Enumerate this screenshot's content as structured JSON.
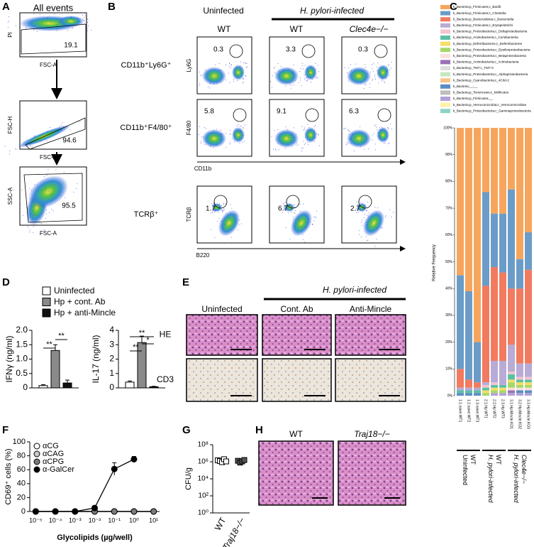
{
  "panel_letters": [
    "A",
    "B",
    "C",
    "D",
    "E",
    "F",
    "G",
    "H"
  ],
  "panel_a": {
    "title": "All events",
    "plots": [
      {
        "y_label": "PI",
        "x_label": "FSC-A",
        "gate_value": 19.1
      },
      {
        "y_label": "FSC-H",
        "x_label": "FSC-A",
        "gate_value": 94.6
      },
      {
        "y_label": "SSC-A",
        "x_label": "FSC-A",
        "gate_value": 95.5
      }
    ]
  },
  "panel_b": {
    "group_uninfected": "Uninfected",
    "group_infected": "H. pylori-infected",
    "columns": [
      "WT",
      "WT",
      "Clec4e−/−"
    ],
    "rows": [
      {
        "label": "CD11b⁺Ly6G⁺",
        "y_label": "Ly6G",
        "gate_values": [
          0.3,
          3.3,
          0.3
        ]
      },
      {
        "label": "CD11b⁺F4/80⁺",
        "y_label": "F4/80",
        "x_label": "CD11b",
        "gate_values": [
          5.8,
          9.1,
          6.3
        ]
      },
      {
        "label": "TCRβ⁺",
        "y_label": "TCRβ",
        "x_label": "B220",
        "gate_values": [
          1.7,
          6.7,
          2.7
        ]
      }
    ]
  },
  "panel_e": {
    "group_infected": "H. pylori-infected",
    "columns": [
      "Uninfected",
      "Cont. Ab",
      "Anti-Mincle"
    ],
    "rows": [
      "HE",
      "CD3"
    ]
  },
  "panel_h": {
    "columns": [
      "WT",
      "Traj18−/−"
    ]
  },
  "chart_data": [
    {
      "type": "stacked_bar",
      "ylabel": "Relative Frequency",
      "categories": [
        "1.1.naive.WT1",
        "1.2.naive.WT2",
        "1.3.naive.WT3",
        "2.1.Hp.WT1",
        "2.2.Hp.WT2",
        "2.3.Hp.WT3",
        "3.1.Hp.Mincle.KO1",
        "3.2.Hp.Mincle.KO2",
        "3.3.Hp.Mincle.KO3"
      ],
      "groups": [
        {
          "lines": [
            "Uninfected",
            "WT"
          ]
        },
        {
          "lines": [
            "H. pylori-infected",
            "WT"
          ]
        },
        {
          "lines": [
            "H. pylori-infected",
            "Clec4e−/−"
          ]
        }
      ],
      "ylim": [
        0,
        100
      ],
      "yticks": [
        {
          "value": 0,
          "label": "0%"
        },
        {
          "value": 10,
          "label": "10%"
        },
        {
          "value": 20,
          "label": "20%"
        },
        {
          "value": 30,
          "label": "30%"
        },
        {
          "value": 40,
          "label": "40%"
        },
        {
          "value": 50,
          "label": "50%"
        },
        {
          "value": 60,
          "label": "60%"
        },
        {
          "value": 70,
          "label": "70%"
        },
        {
          "value": 80,
          "label": "80%"
        },
        {
          "value": 90,
          "label": "90%"
        },
        {
          "value": 100,
          "label": "100%"
        }
      ],
      "series": [
        {
          "name": "k_Bacteria;p_Firmicutes;c_Bacilli",
          "color": "#f7a55c",
          "values": [
            55,
            61,
            80,
            24,
            32,
            32,
            23,
            49,
            39
          ]
        },
        {
          "name": "k_Bacteria;p_Firmicutes;c_Clostridia",
          "color": "#6b9cc8",
          "values": [
            35,
            33,
            15,
            35,
            20,
            22,
            37,
            11,
            14
          ]
        },
        {
          "name": "k_Bacteria;p_Bacteroidetes;c_Bacteroidia",
          "color": "#f27a5f",
          "values": [
            7,
            3,
            2,
            36,
            35,
            33,
            21,
            28,
            35
          ]
        },
        {
          "name": "k_Bacteria;p_Firmicutes;c_Erysipelotrichi",
          "color": "#b8abd6",
          "values": [
            1,
            1,
            1,
            1,
            8,
            9,
            10,
            5,
            5
          ]
        },
        {
          "name": "k_Bacteria;p_Proteobacteria;c_Deltaproteobacteria",
          "color": "#f4c3cf",
          "values": [
            0,
            0,
            0,
            1,
            1,
            0,
            1,
            1,
            1
          ]
        },
        {
          "name": "k_Bacteria;p_Actinobacteria;c_Coriobacteriia",
          "color": "#5bbfa6",
          "values": [
            1,
            1,
            1,
            1,
            1,
            1,
            2,
            1,
            1
          ]
        },
        {
          "name": "k_Bacteria;p_Deferribacteres;c_Deferribacteres",
          "color": "#f5de68",
          "values": [
            0,
            0,
            0,
            1,
            1,
            1,
            1,
            1,
            1
          ]
        },
        {
          "name": "k_Bacteria;p_Proteobacteria;c_Epsilonproteobacteria",
          "color": "#a6d86b",
          "values": [
            0,
            0,
            0,
            1,
            1,
            1,
            2,
            1,
            1
          ]
        },
        {
          "name": "k_Bacteria;p_Proteobacteria;c_Betaproteobacteria",
          "color": "#fbe0dc",
          "values": [
            0,
            0,
            0,
            0,
            0,
            0,
            1,
            1,
            1
          ]
        },
        {
          "name": "k_Bacteria;p_Actinobacteria;c_Actinobacteria",
          "color": "#9b70b4",
          "values": [
            0,
            0,
            0,
            0,
            0,
            0,
            1,
            0,
            0
          ]
        },
        {
          "name": "k_Bacteria;p_TM7;c_TM7-3",
          "color": "#dedede",
          "values": [
            0,
            0,
            0,
            0,
            0,
            0,
            0,
            0,
            0
          ]
        },
        {
          "name": "k_Bacteria;p_Proteobacteria;c_Alphaproteobacteria",
          "color": "#c6e8bf",
          "values": [
            0,
            0,
            0,
            0,
            0,
            0,
            0,
            0,
            0
          ]
        },
        {
          "name": "k_Bacteria;p_Cyanobacteria;c_4C0d-2",
          "color": "#f8c489",
          "values": [
            0,
            0,
            0,
            0,
            0,
            0,
            0,
            0,
            0
          ]
        },
        {
          "name": "k_Bacteria;__;__",
          "color": "#5a8dc3",
          "values": [
            1,
            1,
            1,
            0,
            0,
            0,
            0,
            1,
            1
          ]
        },
        {
          "name": "k_Bacteria;p_Tenericutes;c_Mollicutes",
          "color": "#bdbdbd",
          "values": [
            0,
            0,
            0,
            0,
            0,
            0,
            0,
            0,
            0
          ]
        },
        {
          "name": "k_Bacteria;p_Firmicutes;__",
          "color": "#b2a1d8",
          "values": [
            0,
            0,
            0,
            0,
            1,
            1,
            1,
            1,
            1
          ]
        },
        {
          "name": "k_Bacteria;p_Verrucomicrobia;c_Verrucomicrobiae",
          "color": "#fff1a6",
          "values": [
            0,
            0,
            0,
            0,
            0,
            0,
            0,
            0,
            0
          ]
        },
        {
          "name": "k_Bacteria;p_Proteobacteria;c_Gammaproteobacteria",
          "color": "#8ed2c6",
          "values": [
            0,
            0,
            0,
            0,
            0,
            0,
            0,
            0,
            0
          ]
        }
      ]
    },
    {
      "type": "bar",
      "legend": [
        "Uninfected",
        "Hp + cont. Ab",
        "Hp + anti-Mincle"
      ],
      "colors": [
        "#ffffff",
        "#8a8a8a",
        "#111111"
      ],
      "subplots": [
        {
          "ylabel": "IFNγ (ng/ml)",
          "values": [
            0.08,
            1.3,
            0.17
          ],
          "errors": [
            0.03,
            0.2,
            0.1
          ],
          "ylim": [
            0,
            2
          ],
          "yticks": [
            0,
            0.5,
            {
              "value": 1,
              "label": "1.0"
            },
            1.5,
            {
              "value": 2,
              "label": "2.0"
            }
          ],
          "annotations": [
            "**",
            "**"
          ]
        },
        {
          "ylabel": "IL-17 (ng/ml)",
          "values": [
            0.4,
            3.15,
            0.08
          ],
          "errors": [
            0.08,
            0.45,
            0.03
          ],
          "ylim": [
            0,
            4
          ],
          "yticks": [
            0,
            1,
            2,
            3,
            4
          ],
          "annotations": [
            "**",
            "*",
            "**"
          ]
        }
      ]
    },
    {
      "type": "line",
      "xlabel": "Glycolipids (µg/well)",
      "ylabel": "CD69⁺ cells (%)",
      "log_x": true,
      "x": [
        1e-05,
        0.0001,
        0.001,
        0.01,
        0.1,
        1,
        10
      ],
      "xlim": [
        5e-06,
        20
      ],
      "xticks": [
        {
          "value": 1e-05,
          "label": "10⁻⁵"
        },
        {
          "value": 0.0001,
          "label": "10⁻⁴"
        },
        {
          "value": 0.001,
          "label": "10⁻³"
        },
        {
          "value": 0.01,
          "label": "10⁻²"
        },
        {
          "value": 0.1,
          "label": "10⁻¹"
        },
        {
          "value": 1,
          "label": "10⁰"
        },
        {
          "value": 10,
          "label": "10¹"
        }
      ],
      "ylim": [
        0,
        100
      ],
      "yticks": [
        0,
        20,
        40,
        60,
        80,
        100
      ],
      "series": [
        {
          "name": "αCG",
          "color": "#ffffff",
          "values": [
            0,
            0,
            0,
            0,
            0,
            0,
            0
          ]
        },
        {
          "name": "αCAG",
          "color": "#c8c8c8",
          "values": [
            0,
            0,
            0,
            0,
            0,
            0,
            0
          ]
        },
        {
          "name": "αCPG",
          "color": "#7a7a7a",
          "values": [
            0,
            0,
            0,
            0,
            0,
            0,
            0
          ]
        },
        {
          "name": "α-GalCer",
          "color": "#000000",
          "values": [
            0,
            0,
            0,
            5,
            61,
            75,
            null
          ],
          "errors": [
            0,
            0,
            0,
            1,
            9,
            4,
            null
          ]
        }
      ]
    },
    {
      "type": "scatter",
      "ylabel": "CFU/g",
      "log_y": true,
      "categories": [
        "WT",
        "Traj18−/−"
      ],
      "colors": [
        "#ffffff",
        "#555555"
      ],
      "values": [
        [
          1500000,
          1200000,
          900000,
          2000000,
          1100000
        ],
        [
          1300000,
          800000,
          1100000,
          1600000
        ]
      ],
      "ylim": [
        1,
        100000000
      ],
      "yticks": [
        {
          "value": 1,
          "label": "10⁰"
        },
        {
          "value": 100,
          "label": "10²"
        },
        {
          "value": 10000,
          "label": "10⁴"
        },
        {
          "value": 1000000,
          "label": "10⁶"
        },
        {
          "value": 100000000,
          "label": "10⁸"
        }
      ]
    }
  ]
}
